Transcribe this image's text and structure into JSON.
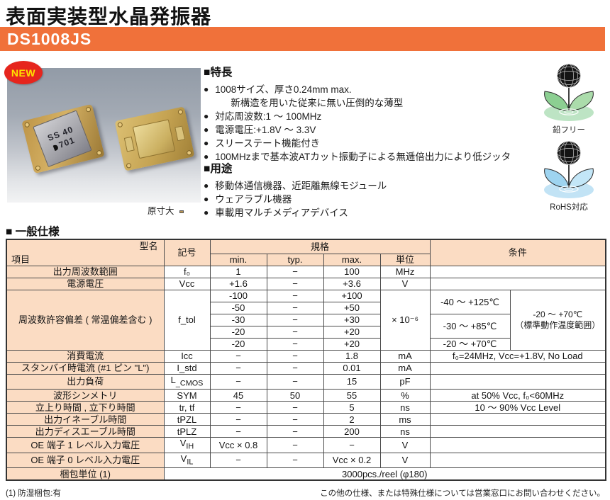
{
  "page": {
    "title": "表面実装型水晶発振器",
    "model": "DS1008JS",
    "new_badge": "NEW",
    "actual_size_label": "原寸大",
    "chip_marking_line1": "SS 40",
    "chip_marking_line2": "701"
  },
  "colors": {
    "accent_orange": "#F0713A",
    "table_header_bg": "#FBDCC3",
    "badge_red": "#E6251D",
    "badge_yellow": "#FFE100",
    "leadfree_green": "#8ccf92",
    "rohs_blue": "#9ed4f0"
  },
  "eco": {
    "lead_free_label": "鉛フリー",
    "rohs_label": "RoHS対応"
  },
  "features": {
    "heading": "■特長",
    "items": [
      {
        "text": "1008サイズ、厚さ0.24mm max.",
        "sub": "新構造を用いた従来に無い圧倒的な薄型"
      },
      {
        "text": "対応周波数:1 ～ 100MHz"
      },
      {
        "text": "電源電圧:+1.8V ～ 3.3V"
      },
      {
        "text": "スリーステート機能付き"
      },
      {
        "text": "100MHzまで基本波ATカット振動子による無逓倍出力により低ジッタ"
      }
    ]
  },
  "uses": {
    "heading": "■用途",
    "items": [
      {
        "text": "移動体通信機器、近距離無線モジュール"
      },
      {
        "text": "ウェアラブル機器"
      },
      {
        "text": "車載用マルチメディアデバイス"
      }
    ]
  },
  "spec": {
    "heading": "■ 一般仕様",
    "header": {
      "model_label": "型名",
      "item_label": "項目",
      "symbol_label": "記号",
      "spec_label": "規格",
      "min_label": "min.",
      "typ_label": "typ.",
      "max_label": "max.",
      "unit_label": "単位",
      "condition_label": "条件"
    },
    "rows": [
      [
        {
          "t": "出力周波数範囲",
          "cls": "label"
        },
        {
          "t": "f₀"
        },
        {
          "t": "1"
        },
        {
          "t": "−"
        },
        {
          "t": "100"
        },
        {
          "t": "MHz"
        },
        {
          "t": "",
          "cs": 2
        }
      ],
      [
        {
          "t": "電源電圧",
          "cls": "label"
        },
        {
          "t": "Vcc"
        },
        {
          "t": "+1.6"
        },
        {
          "t": "−"
        },
        {
          "t": "+3.6"
        },
        {
          "t": "V"
        },
        {
          "t": "",
          "cs": 2
        }
      ],
      [
        {
          "t": "周波数許容偏差 ( 常温偏差含む )",
          "cls": "label",
          "rs": 5
        },
        {
          "t": "f_tol",
          "rs": 5
        },
        {
          "t": "-100"
        },
        {
          "t": "−"
        },
        {
          "t": "+100"
        },
        {
          "t": "× 10⁻⁶",
          "rs": 5
        },
        {
          "t": "-40 ～ +125℃",
          "rs": 2
        },
        {
          "h": "-20 ～ +70℃<br>（標準動作温度範囲）",
          "rs": 5,
          "cls": "cond-small"
        }
      ],
      [
        {
          "t": "-50"
        },
        {
          "t": "−"
        },
        {
          "t": "+50"
        }
      ],
      [
        {
          "t": "-30"
        },
        {
          "t": "−"
        },
        {
          "t": "+30"
        },
        {
          "t": "-30 ～ +85℃",
          "rs": 2
        }
      ],
      [
        {
          "t": "-20"
        },
        {
          "t": "−"
        },
        {
          "t": "+20"
        }
      ],
      [
        {
          "t": "-20"
        },
        {
          "t": "−"
        },
        {
          "t": "+20"
        },
        {
          "t": "-20 ～ +70℃"
        }
      ],
      [
        {
          "t": "消費電流",
          "cls": "label"
        },
        {
          "t": "Icc"
        },
        {
          "t": "−"
        },
        {
          "t": "−"
        },
        {
          "t": "1.8"
        },
        {
          "t": "mA"
        },
        {
          "t": "f₀=24MHz, Vcc=+1.8V, No Load",
          "cs": 2,
          "cls": "cond"
        }
      ],
      [
        {
          "t": "スタンバイ時電流 (#1 ピン \"L\")",
          "cls": "label"
        },
        {
          "t": "I_std"
        },
        {
          "t": "−"
        },
        {
          "t": "−"
        },
        {
          "t": "0.01"
        },
        {
          "t": "mA"
        },
        {
          "t": "",
          "cs": 2
        }
      ],
      [
        {
          "t": "出力負荷",
          "cls": "label"
        },
        {
          "h": "L<sub>_CMOS</sub>"
        },
        {
          "t": "−"
        },
        {
          "t": "−"
        },
        {
          "t": "15"
        },
        {
          "t": "pF"
        },
        {
          "t": "",
          "cs": 2
        }
      ],
      [
        {
          "t": "波形シンメトリ",
          "cls": "label"
        },
        {
          "t": "SYM"
        },
        {
          "t": "45"
        },
        {
          "t": "50"
        },
        {
          "t": "55"
        },
        {
          "t": "%"
        },
        {
          "t": "at 50% Vcc, f₀<60MHz",
          "cs": 2,
          "cls": "cond"
        }
      ],
      [
        {
          "t": "立上り時間 , 立下り時間",
          "cls": "label"
        },
        {
          "t": "tr, tf"
        },
        {
          "t": "−"
        },
        {
          "t": "−"
        },
        {
          "t": "5"
        },
        {
          "t": "ns"
        },
        {
          "t": "10 ～ 90% Vcc Level",
          "cs": 2,
          "cls": "cond"
        }
      ],
      [
        {
          "t": "出力イネーブル時間",
          "cls": "label"
        },
        {
          "t": "tPZL"
        },
        {
          "t": "−"
        },
        {
          "t": "−"
        },
        {
          "t": "2"
        },
        {
          "t": "ms"
        },
        {
          "t": "",
          "cs": 2
        }
      ],
      [
        {
          "t": "出力ディスエーブル時間",
          "cls": "label"
        },
        {
          "t": "tPLZ"
        },
        {
          "t": "−"
        },
        {
          "t": "−"
        },
        {
          "t": "200"
        },
        {
          "t": "ns"
        },
        {
          "t": "",
          "cs": 2
        }
      ],
      [
        {
          "t": "OE 端子 1 レベル入力電圧",
          "cls": "label"
        },
        {
          "h": "V<sub>IH</sub>"
        },
        {
          "t": "Vcc × 0.8"
        },
        {
          "t": "−"
        },
        {
          "t": "−"
        },
        {
          "t": "V"
        },
        {
          "t": "",
          "cs": 2
        }
      ],
      [
        {
          "t": "OE 端子 0 レベル入力電圧",
          "cls": "label"
        },
        {
          "h": "V<sub>IL</sub>"
        },
        {
          "t": "−"
        },
        {
          "t": "−"
        },
        {
          "t": "Vcc × 0.2"
        },
        {
          "t": "V"
        },
        {
          "t": "",
          "cs": 2
        }
      ],
      [
        {
          "t": "梱包単位 (1)",
          "cls": "label"
        },
        {
          "t": "3000pcs./reel (φ180)",
          "cs": 7
        }
      ]
    ]
  },
  "footer": {
    "note_left": "(1) 防湿梱包:有",
    "note_right": "この他の仕様、または特殊仕様については営業窓口にお問い合わせください。"
  }
}
